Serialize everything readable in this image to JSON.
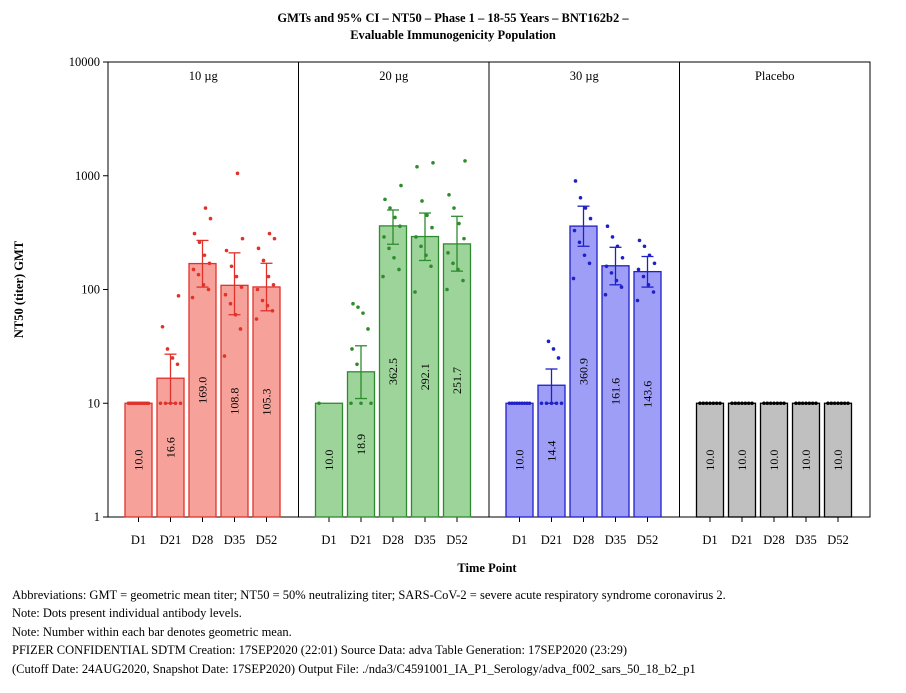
{
  "chart_data": {
    "type": "bar",
    "title_lines": [
      "GMTs and 95% CI – NT50 – Phase 1 – 18-55 Years – BNT162b2 –",
      "Evaluable Immunogenicity Population"
    ],
    "xlabel": "Time Point",
    "ylabel": "NT50 (titer) GMT",
    "yscale": "log",
    "ylim": [
      1,
      10000
    ],
    "yticks": [
      1,
      10,
      100,
      1000,
      10000
    ],
    "ytick_labels": [
      "1",
      "10",
      "100",
      "1000",
      "10000"
    ],
    "categories": [
      "D1",
      "D21",
      "D28",
      "D35",
      "D52"
    ],
    "panels": [
      {
        "name": "10 µg",
        "color": "#e0322a",
        "fill": "#f7a19b",
        "values": [
          10.0,
          16.6,
          169.0,
          108.8,
          105.3
        ],
        "labels": [
          "10.0",
          "16.6",
          "169.0",
          "108.8",
          "105.3"
        ],
        "ci_low": [
          null,
          10.0,
          105,
          60,
          65
        ],
        "ci_high": [
          null,
          27,
          270,
          210,
          170
        ],
        "points": [
          [
            10,
            10,
            10,
            10,
            10,
            10,
            10,
            10,
            10,
            10,
            10,
            10
          ],
          [
            10,
            10,
            10,
            10,
            10,
            22,
            25,
            30,
            47,
            88
          ],
          [
            85,
            100,
            110,
            135,
            150,
            170,
            200,
            260,
            310,
            420,
            520
          ],
          [
            26,
            45,
            60,
            75,
            90,
            105,
            130,
            160,
            220,
            280,
            1050
          ],
          [
            55,
            65,
            72,
            80,
            100,
            110,
            130,
            180,
            230,
            280,
            310
          ]
        ]
      },
      {
        "name": "20 µg",
        "color": "#2e8b2e",
        "fill": "#9dd49a",
        "values": [
          10.0,
          18.9,
          362.5,
          292.1,
          251.7
        ],
        "labels": [
          "10.0",
          "18.9",
          "362.5",
          "292.1",
          "251.7"
        ],
        "ci_low": [
          null,
          11,
          250,
          180,
          145
        ],
        "ci_high": [
          null,
          32,
          500,
          470,
          440
        ],
        "points": [
          [
            10
          ],
          [
            10,
            10,
            10,
            22,
            30,
            45,
            62,
            70,
            75
          ],
          [
            130,
            150,
            190,
            230,
            290,
            360,
            430,
            520,
            620,
            820
          ],
          [
            95,
            160,
            200,
            240,
            290,
            350,
            450,
            600,
            1200,
            1300
          ],
          [
            100,
            120,
            150,
            170,
            210,
            280,
            380,
            520,
            680,
            1350
          ]
        ]
      },
      {
        "name": "30 µg",
        "color": "#2020c8",
        "fill": "#9e9ef7",
        "values": [
          10.0,
          14.4,
          360.9,
          161.6,
          143.6
        ],
        "labels": [
          "10.0",
          "14.4",
          "360.9",
          "161.6",
          "143.6"
        ],
        "ci_low": [
          null,
          10.0,
          240,
          110,
          105
        ],
        "ci_high": [
          null,
          20,
          540,
          235,
          195
        ],
        "points": [
          [
            10,
            10,
            10,
            10,
            10,
            10,
            10,
            10,
            10
          ],
          [
            10,
            10,
            10,
            10,
            10,
            25,
            30,
            35
          ],
          [
            125,
            170,
            200,
            260,
            330,
            420,
            520,
            640,
            900
          ],
          [
            90,
            105,
            120,
            140,
            160,
            190,
            240,
            290,
            360
          ],
          [
            80,
            95,
            110,
            130,
            150,
            170,
            200,
            240,
            270
          ]
        ]
      },
      {
        "name": "Placebo",
        "color": "#000000",
        "fill": "#c0c0c0",
        "values": [
          10.0,
          10.0,
          10.0,
          10.0,
          10.0
        ],
        "labels": [
          "10.0",
          "10.0",
          "10.0",
          "10.0",
          "10.0"
        ],
        "ci_low": [
          null,
          null,
          null,
          null,
          null
        ],
        "ci_high": [
          null,
          null,
          null,
          null,
          null
        ],
        "points": [
          [
            10,
            10,
            10,
            10,
            10,
            10,
            10
          ],
          [
            10,
            10,
            10,
            10,
            10,
            10,
            10
          ],
          [
            10,
            10,
            10,
            10,
            10,
            10,
            10
          ],
          [
            10,
            10,
            10,
            10,
            10,
            10,
            10
          ],
          [
            10,
            10,
            10,
            10,
            10,
            10,
            10
          ]
        ]
      }
    ]
  },
  "notes": [
    "Abbreviations: GMT = geometric mean titer; NT50 = 50% neutralizing titer; SARS-CoV-2 = severe acute respiratory syndrome coronavirus 2.",
    "Note: Dots present individual antibody levels.",
    "Note: Number within each bar denotes geometric mean.",
    "PFIZER CONFIDENTIAL  SDTM Creation: 17SEP2020 (22:01)  Source Data: adva  Table Generation: 17SEP2020 (23:29)",
    "(Cutoff Date: 24AUG2020, Snapshot Date: 17SEP2020) Output File: ./nda3/C4591001_IA_P1_Serology/adva_f002_sars_50_18_b2_p1"
  ]
}
